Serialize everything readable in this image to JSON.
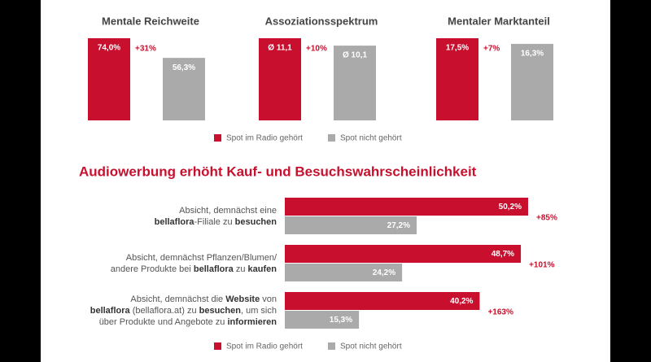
{
  "chart_data": [
    {
      "type": "bar",
      "title": "Mentale Reichweite",
      "values": [
        74.0,
        56.3
      ],
      "value_labels": [
        "74,0%",
        "56,3%"
      ],
      "colors": [
        "#c8102e",
        "#aaaaaa"
      ],
      "annotation": "+31%"
    },
    {
      "type": "bar",
      "title": "Assoziationsspektrum",
      "values": [
        11.1,
        10.1
      ],
      "value_labels": [
        "Ø 11,1",
        "Ø 10,1"
      ],
      "colors": [
        "#c8102e",
        "#aaaaaa"
      ],
      "annotation": "+10%"
    },
    {
      "type": "bar",
      "title": "Mentaler Marktanteil",
      "values": [
        17.5,
        16.3
      ],
      "value_labels": [
        "17,5%",
        "16,3%"
      ],
      "colors": [
        "#c8102e",
        "#aaaaaa"
      ],
      "annotation": "+7%"
    },
    {
      "type": "hbar",
      "title": "Audiowerbung erhöht Kauf- und Besuchswahrscheinlichkeit",
      "categories": [
        [
          [
            {
              "text": "Absicht, demnächst eine",
              "bold": false
            }
          ],
          [
            {
              "text": "bellaflora",
              "bold": true
            },
            {
              "text": "-Filiale zu ",
              "bold": false
            },
            {
              "text": "besuchen",
              "bold": true
            }
          ]
        ],
        [
          [
            {
              "text": "Absicht, demnächst Pflanzen/Blumen/",
              "bold": false
            }
          ],
          [
            {
              "text": "andere Produkte bei ",
              "bold": false
            },
            {
              "text": "bellaflora",
              "bold": true
            },
            {
              "text": " zu ",
              "bold": false
            },
            {
              "text": "kaufen",
              "bold": true
            }
          ]
        ],
        [
          [
            {
              "text": "Absicht, demnächst die ",
              "bold": false
            },
            {
              "text": "Website",
              "bold": true
            },
            {
              "text": " von",
              "bold": false
            }
          ],
          [
            {
              "text": "bellaflora",
              "bold": true
            },
            {
              "text": " (bellaflora.at) zu ",
              "bold": false
            },
            {
              "text": "besuchen",
              "bold": true
            },
            {
              "text": ", um sich",
              "bold": false
            }
          ],
          [
            {
              "text": "über Produkte und Angebote zu ",
              "bold": false
            },
            {
              "text": "informieren",
              "bold": true
            }
          ]
        ]
      ],
      "series": [
        {
          "name": "Spot im Radio gehört",
          "color": "#c8102e",
          "values": [
            50.2,
            48.7,
            40.2
          ],
          "value_labels": [
            "50,2%",
            "48,7%",
            "40,2%"
          ]
        },
        {
          "name": "Spot nicht gehört",
          "color": "#aaaaaa",
          "values": [
            27.2,
            24.2,
            15.3
          ],
          "value_labels": [
            "27,2%",
            "24,2%",
            "15,3%"
          ]
        }
      ],
      "annotations": [
        "+85%",
        "+101%",
        "+163%"
      ]
    }
  ],
  "top_legend": [
    {
      "name": "Spot im Radio gehört",
      "color": "#c8102e"
    },
    {
      "name": "Spot nicht gehört",
      "color": "#aaaaaa"
    }
  ]
}
